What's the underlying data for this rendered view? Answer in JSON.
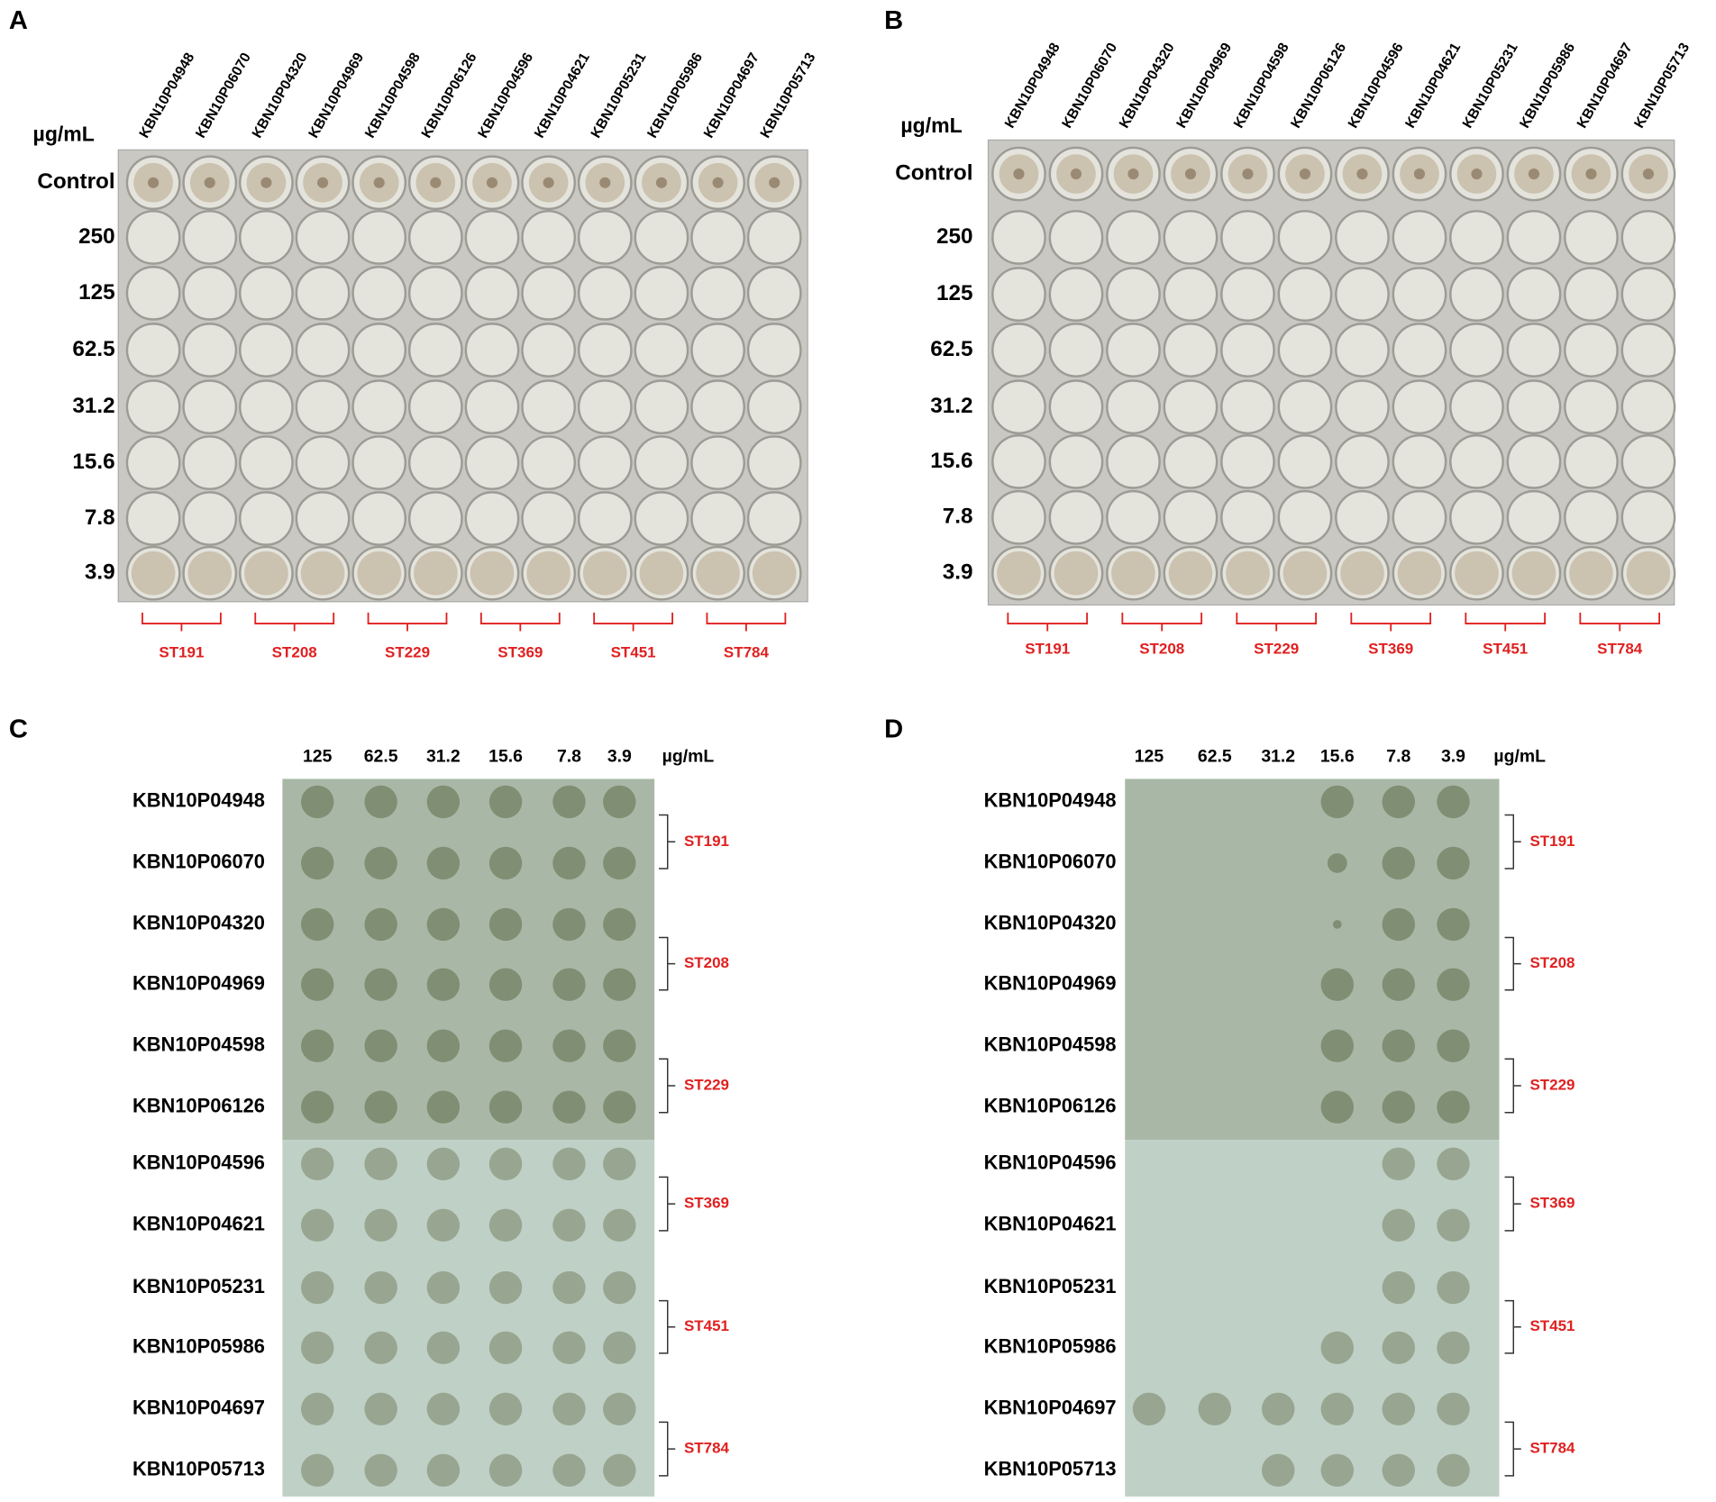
{
  "panels": [
    {
      "letter": "A",
      "unit": "µg/mL",
      "columns": [
        "KBN10P04948",
        "KBN10P06070",
        "KBN10P04320",
        "KBN10P04969",
        "KBN10P04598",
        "KBN10P06126",
        "KBN10P04596",
        "KBN10P04621",
        "KBN10P05231",
        "KBN10P05986",
        "KBN10P04697",
        "KBN10P05713"
      ],
      "rows": [
        "Control",
        "250",
        "125",
        "62.5",
        "31.2",
        "15.6",
        "7.8",
        "3.9"
      ],
      "groups": [
        "ST191",
        "ST208",
        "ST229",
        "ST369",
        "ST451",
        "ST784"
      ]
    },
    {
      "letter": "B",
      "unit": "µg/mL",
      "columns": [
        "KBN10P04948",
        "KBN10P06070",
        "KBN10P04320",
        "KBN10P04969",
        "KBN10P04598",
        "KBN10P06126",
        "KBN10P04596",
        "KBN10P04621",
        "KBN10P05231",
        "KBN10P05986",
        "KBN10P04697",
        "KBN10P05713"
      ],
      "rows": [
        "Control",
        "250",
        "125",
        "62.5",
        "31.2",
        "15.6",
        "7.8",
        "3.9"
      ],
      "groups": [
        "ST191",
        "ST208",
        "ST229",
        "ST369",
        "ST451",
        "ST784"
      ]
    },
    {
      "letter": "C",
      "unit": "µg/mL",
      "concentrations": [
        "125",
        "62.5",
        "31.2",
        "15.6",
        "7.8",
        "3.9"
      ],
      "strains": [
        "KBN10P04948",
        "KBN10P06070",
        "KBN10P04320",
        "KBN10P04969",
        "KBN10P04598",
        "KBN10P06126",
        "KBN10P04596",
        "KBN10P04621",
        "KBN10P05231",
        "KBN10P05986",
        "KBN10P04697",
        "KBN10P05713"
      ],
      "groups": [
        "ST191",
        "ST208",
        "ST229",
        "ST369",
        "ST451",
        "ST784"
      ]
    },
    {
      "letter": "D",
      "unit": "µg/mL",
      "concentrations": [
        "125",
        "62.5",
        "31.2",
        "15.6",
        "7.8",
        "3.9"
      ],
      "strains": [
        "KBN10P04948",
        "KBN10P06070",
        "KBN10P04320",
        "KBN10P04969",
        "KBN10P04598",
        "KBN10P06126",
        "KBN10P04596",
        "KBN10P04621",
        "KBN10P05231",
        "KBN10P05986",
        "KBN10P04697",
        "KBN10P05713"
      ],
      "groups": [
        "ST191",
        "ST208",
        "ST229",
        "ST369",
        "ST451",
        "ST784"
      ]
    }
  ]
}
